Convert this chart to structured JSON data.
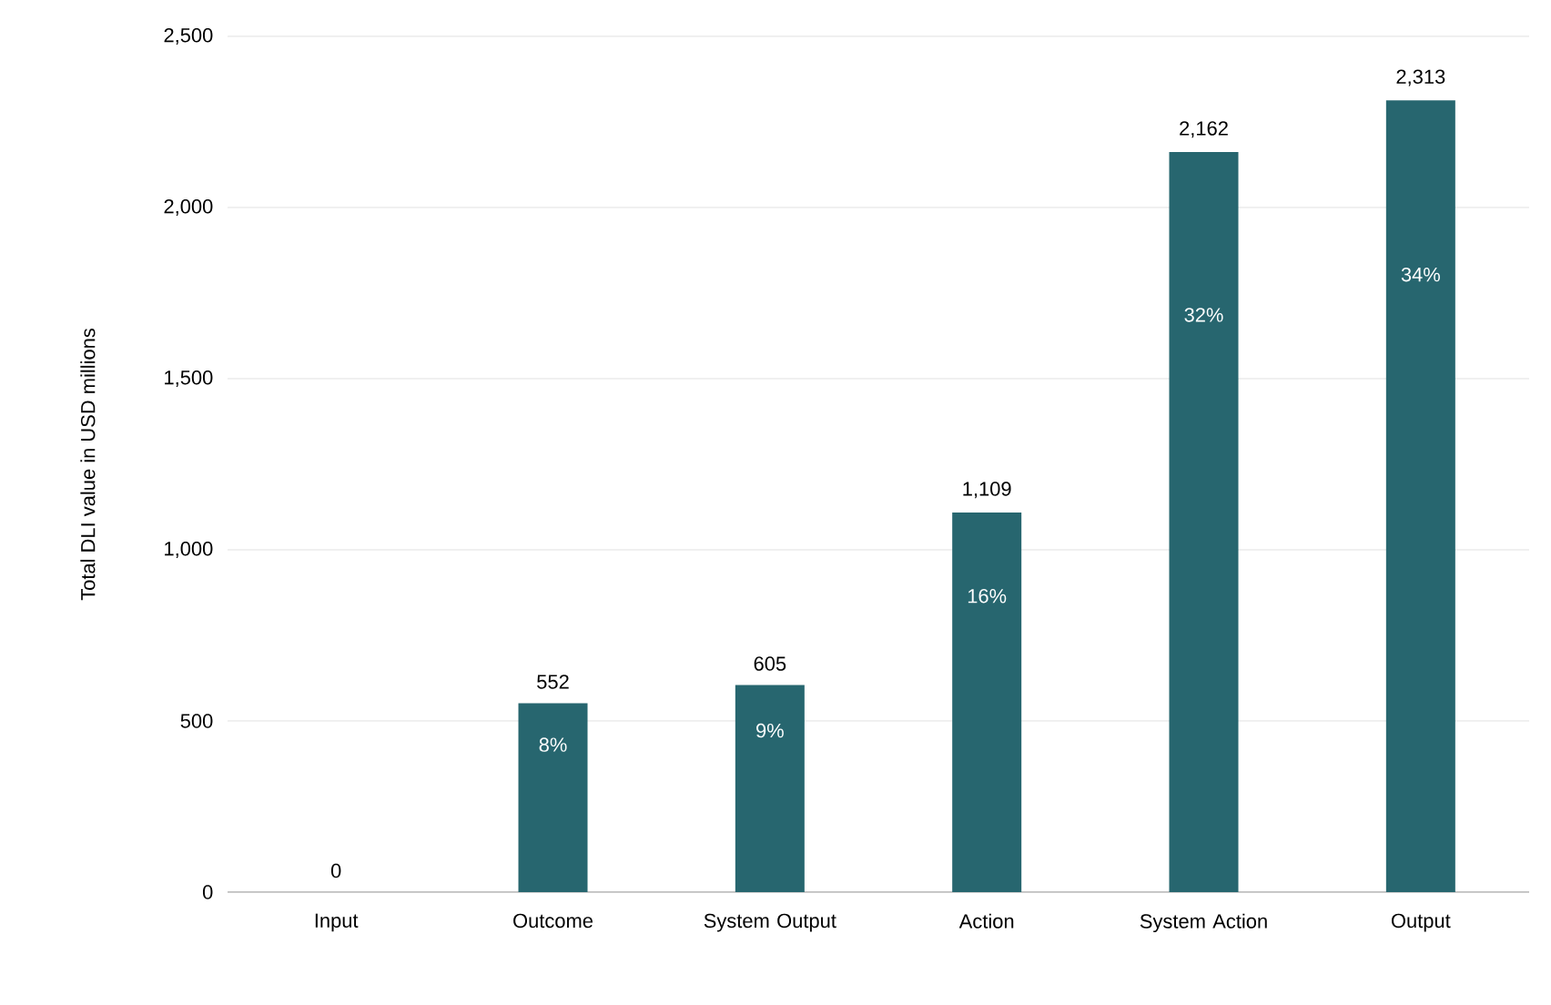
{
  "chart_data": {
    "type": "bar",
    "ylabel": "Total DLI value in USD millions",
    "categories": [
      "Input",
      "Outcome",
      "System Output",
      "Action",
      "System Action",
      "Output"
    ],
    "values": [
      0,
      552,
      605,
      1109,
      2162,
      2313
    ],
    "value_labels": [
      "0",
      "552",
      "605",
      "1,109",
      "2,162",
      "2,313"
    ],
    "color": "#27666f",
    "ylim": [
      0,
      2500
    ],
    "yticks": [
      {
        "value": 0,
        "label": "0"
      },
      {
        "value": 500,
        "label": "500"
      },
      {
        "value": 1000,
        "label": "1,000"
      },
      {
        "value": 1500,
        "label": "1,500"
      },
      {
        "value": 2000,
        "label": "2,000"
      },
      {
        "value": 2500,
        "label": "2,500"
      }
    ],
    "grid": "y",
    "annotations": [
      "8%",
      "9%",
      "16%",
      "32%",
      "34%"
    ]
  }
}
